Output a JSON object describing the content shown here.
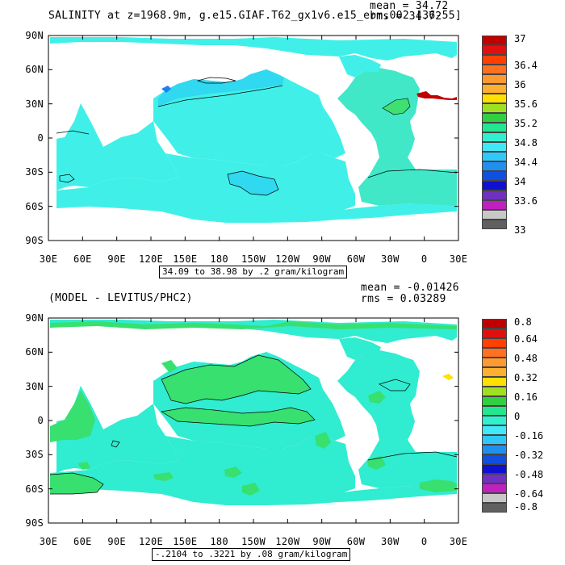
{
  "panels": [
    {
      "id": "salinity",
      "title": "SALINITY at z=1968.9m, g.e15.GIAF.T62_gx1v6.e15_ebm.002 [36-55]",
      "stats": {
        "mean": "mean = 34.72",
        "rms": "rms = 34.72"
      },
      "range_label": "34.09 to 38.98 by .2 gram/kilogram",
      "lat_ticks": [
        "90N",
        "60N",
        "30N",
        "0",
        "30S",
        "60S",
        "90S"
      ],
      "lon_ticks": [
        "30E",
        "60E",
        "90E",
        "120E",
        "150E",
        "180",
        "150W",
        "120W",
        "90W",
        "60W",
        "30W",
        "0",
        "30E"
      ],
      "colorbar": {
        "labels": [
          "37",
          "36.4",
          "36",
          "35.6",
          "35.2",
          "34.8",
          "34.4",
          "34",
          "33.6",
          "33"
        ],
        "colors": [
          "#c00000",
          "#e01010",
          "#ff4000",
          "#ff7020",
          "#ff9a30",
          "#ffb030",
          "#ffe000",
          "#a0e020",
          "#30d040",
          "#20e890",
          "#30f0d0",
          "#40e8f8",
          "#30c8f8",
          "#2090f0",
          "#1050e0",
          "#1010d0",
          "#7030c0",
          "#c020c0",
          "#c8c8c8",
          "#606060"
        ]
      },
      "field_color": "#40f0e8",
      "atlantic_color": "#40e8c8",
      "pacific_color": "#30d8f0"
    },
    {
      "id": "difference",
      "title": "(MODEL - LEVITUS/PHC2)",
      "stats": {
        "mean": "mean = -0.01426",
        "rms": "rms = 0.03289"
      },
      "range_label": "-.2104 to .3221 by .08 gram/kilogram",
      "lat_ticks": [
        "90N",
        "60N",
        "30N",
        "0",
        "30S",
        "60S",
        "90S"
      ],
      "lon_ticks": [
        "30E",
        "60E",
        "90E",
        "120E",
        "150E",
        "180",
        "150W",
        "120W",
        "90W",
        "60W",
        "30W",
        "0",
        "30E"
      ],
      "colorbar": {
        "labels": [
          "0.8",
          "0.64",
          "0.48",
          "0.32",
          "0.16",
          "0",
          "-0.16",
          "-0.32",
          "-0.48",
          "-0.64",
          "-0.8"
        ],
        "colors": [
          "#c00000",
          "#e01010",
          "#ff4000",
          "#ff7020",
          "#ff9a30",
          "#ffb030",
          "#ffe000",
          "#a0e020",
          "#30d040",
          "#20e890",
          "#30f0d0",
          "#40e8f8",
          "#30c8f8",
          "#2090f0",
          "#1050e0",
          "#1010d0",
          "#7030c0",
          "#c020c0",
          "#c8c8c8",
          "#606060"
        ]
      },
      "field_color": "#30ecd0",
      "green_color": "#38e070"
    }
  ]
}
